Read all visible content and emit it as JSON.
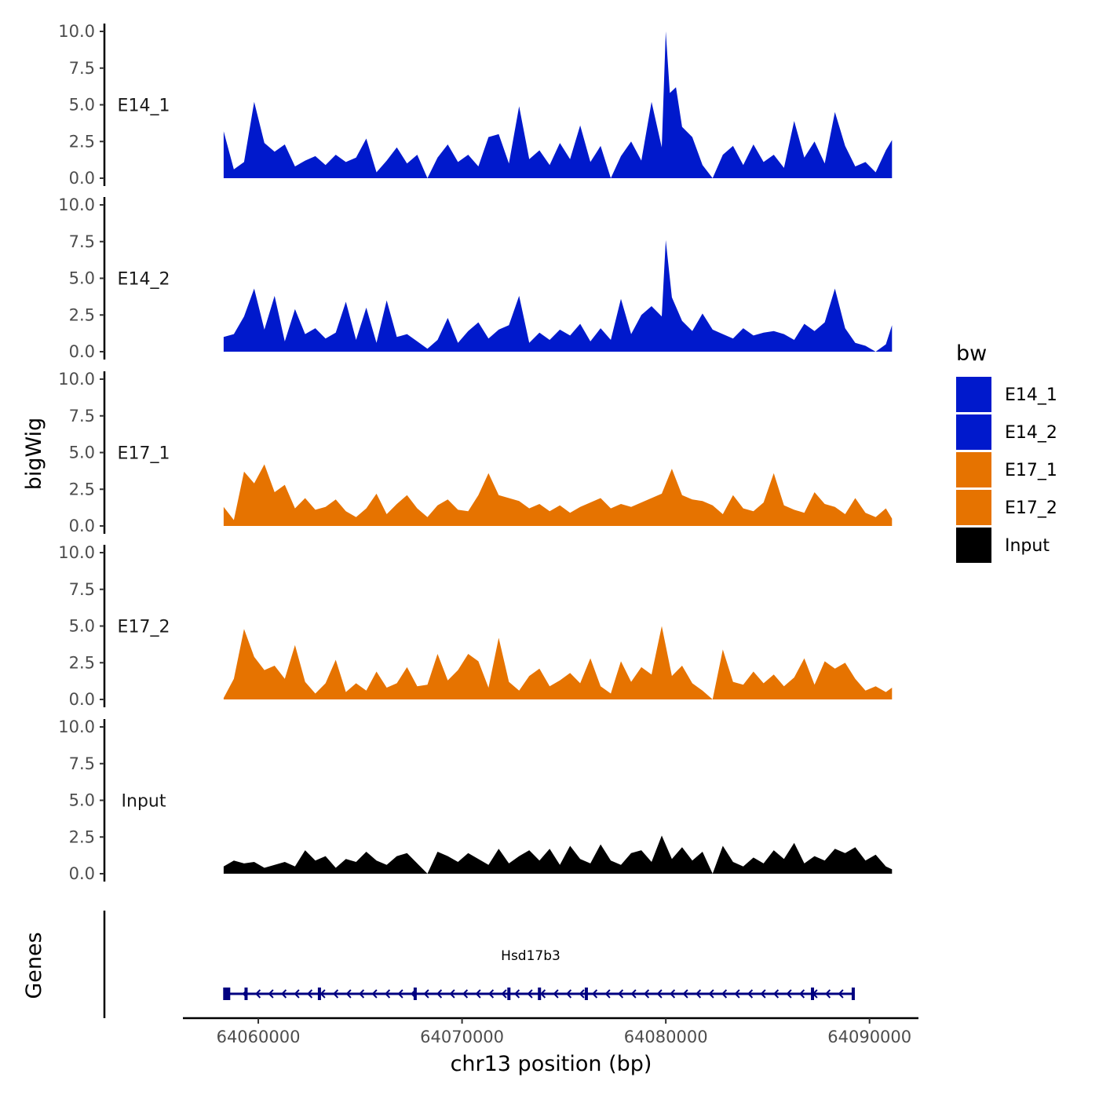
{
  "chart_data": {
    "type": "area",
    "xlabel": "chr13 position (bp)",
    "ylabel": "bigWig",
    "genes_label": "Genes",
    "xlim": [
      64056300,
      64092400
    ],
    "x_ticks": [
      64060000,
      64070000,
      64080000,
      64090000
    ],
    "x_tick_labels": [
      "64060000",
      "64070000",
      "64080000",
      "64090000"
    ],
    "ylim": [
      0,
      10
    ],
    "y_ticks": [
      0,
      2.5,
      5,
      7.5,
      10
    ],
    "y_tick_labels": [
      "0.0",
      "2.5",
      "5.0",
      "7.5",
      "10.0"
    ],
    "legend": {
      "title": "bw",
      "items": [
        {
          "label": "E14_1",
          "color": "#0019CC"
        },
        {
          "label": "E14_2",
          "color": "#0019CC"
        },
        {
          "label": "E17_1",
          "color": "#E67300"
        },
        {
          "label": "E17_2",
          "color": "#E67300"
        },
        {
          "label": "Input",
          "color": "#000000"
        }
      ]
    },
    "series": [
      {
        "name": "E14_1",
        "color": "#0019CC",
        "x": [
          64058300,
          64058800,
          64059300,
          64059800,
          64060300,
          64060800,
          64061300,
          64061800,
          64062300,
          64062800,
          64063300,
          64063800,
          64064300,
          64064800,
          64065300,
          64065800,
          64066300,
          64066800,
          64067300,
          64067800,
          64068300,
          64068800,
          64069300,
          64069800,
          64070300,
          64070800,
          64071300,
          64071800,
          64072300,
          64072800,
          64073300,
          64073800,
          64074300,
          64074800,
          64075300,
          64075800,
          64076300,
          64076800,
          64077300,
          64077800,
          64078300,
          64078800,
          64079300,
          64079800,
          64080000,
          64080200,
          64080500,
          64080800,
          64081300,
          64081800,
          64082300,
          64082800,
          64083300,
          64083800,
          64084300,
          64084800,
          64085300,
          64085800,
          64086300,
          64086800,
          64087300,
          64087800,
          64088300,
          64088800,
          64089300,
          64089800,
          64090300,
          64090800,
          64091100
        ],
        "values": [
          3.2,
          0.6,
          1.1,
          5.2,
          2.4,
          1.8,
          2.3,
          0.8,
          1.2,
          1.5,
          0.9,
          1.6,
          1.1,
          1.4,
          2.7,
          0.4,
          1.2,
          2.1,
          1.0,
          1.6,
          0.0,
          1.4,
          2.3,
          1.1,
          1.6,
          0.8,
          2.8,
          3.0,
          1.0,
          4.9,
          1.3,
          1.9,
          0.9,
          2.4,
          1.3,
          3.6,
          1.1,
          2.2,
          0.0,
          1.5,
          2.5,
          1.2,
          5.2,
          2.1,
          10.0,
          5.8,
          6.2,
          3.5,
          2.8,
          0.9,
          0.0,
          1.6,
          2.2,
          0.9,
          2.3,
          1.1,
          1.6,
          0.7,
          3.9,
          1.4,
          2.5,
          1.0,
          4.5,
          2.2,
          0.8,
          1.1,
          0.4,
          1.9,
          2.6
        ]
      },
      {
        "name": "E14_2",
        "color": "#0019CC",
        "x": [
          64058300,
          64058800,
          64059300,
          64059800,
          64060300,
          64060800,
          64061300,
          64061800,
          64062300,
          64062800,
          64063300,
          64063800,
          64064300,
          64064800,
          64065300,
          64065800,
          64066300,
          64066800,
          64067300,
          64067800,
          64068300,
          64068800,
          64069300,
          64069800,
          64070300,
          64070800,
          64071300,
          64071800,
          64072300,
          64072800,
          64073300,
          64073800,
          64074300,
          64074800,
          64075300,
          64075800,
          64076300,
          64076800,
          64077300,
          64077800,
          64078300,
          64078800,
          64079300,
          64079800,
          64080000,
          64080300,
          64080800,
          64081300,
          64081800,
          64082300,
          64082800,
          64083300,
          64083800,
          64084300,
          64084800,
          64085300,
          64085800,
          64086300,
          64086800,
          64087300,
          64087800,
          64088300,
          64088800,
          64089300,
          64089800,
          64090300,
          64090800,
          64091100
        ],
        "values": [
          1.0,
          1.2,
          2.4,
          4.3,
          1.5,
          3.8,
          0.7,
          2.9,
          1.2,
          1.6,
          0.9,
          1.3,
          3.4,
          0.8,
          3.0,
          0.6,
          3.5,
          1.0,
          1.2,
          0.7,
          0.2,
          0.8,
          2.3,
          0.6,
          1.4,
          2.0,
          0.9,
          1.5,
          1.8,
          3.8,
          0.6,
          1.3,
          0.8,
          1.5,
          1.1,
          1.9,
          0.7,
          1.6,
          0.8,
          3.6,
          1.2,
          2.5,
          3.1,
          2.4,
          7.6,
          3.7,
          2.1,
          1.4,
          2.6,
          1.5,
          1.2,
          0.9,
          1.6,
          1.1,
          1.3,
          1.4,
          1.2,
          0.8,
          1.9,
          1.4,
          2.0,
          4.3,
          1.6,
          0.6,
          0.4,
          0.0,
          0.5,
          1.8
        ]
      },
      {
        "name": "E17_1",
        "color": "#E67300",
        "x": [
          64058300,
          64058800,
          64059300,
          64059800,
          64060300,
          64060800,
          64061300,
          64061800,
          64062300,
          64062800,
          64063300,
          64063800,
          64064300,
          64064800,
          64065300,
          64065800,
          64066300,
          64066800,
          64067300,
          64067800,
          64068300,
          64068800,
          64069300,
          64069800,
          64070300,
          64070800,
          64071300,
          64071800,
          64072300,
          64072800,
          64073300,
          64073800,
          64074300,
          64074800,
          64075300,
          64075800,
          64076300,
          64076800,
          64077300,
          64077800,
          64078300,
          64078800,
          64079300,
          64079800,
          64080300,
          64080800,
          64081300,
          64081800,
          64082300,
          64082800,
          64083300,
          64083800,
          64084300,
          64084800,
          64085300,
          64085800,
          64086300,
          64086800,
          64087300,
          64087800,
          64088300,
          64088800,
          64089300,
          64089800,
          64090300,
          64090800,
          64091100
        ],
        "values": [
          1.3,
          0.4,
          3.7,
          2.9,
          4.2,
          2.3,
          2.8,
          1.2,
          1.9,
          1.1,
          1.3,
          1.8,
          1.0,
          0.6,
          1.2,
          2.2,
          0.8,
          1.5,
          2.1,
          1.2,
          0.6,
          1.4,
          1.8,
          1.1,
          1.0,
          2.1,
          3.6,
          2.1,
          1.9,
          1.7,
          1.2,
          1.5,
          1.0,
          1.4,
          0.9,
          1.3,
          1.6,
          1.9,
          1.2,
          1.5,
          1.3,
          1.6,
          1.9,
          2.2,
          3.9,
          2.1,
          1.8,
          1.7,
          1.4,
          0.8,
          2.1,
          1.2,
          1.0,
          1.6,
          3.6,
          1.4,
          1.1,
          0.9,
          2.3,
          1.5,
          1.3,
          0.8,
          1.9,
          0.9,
          0.6,
          1.2,
          0.5
        ]
      },
      {
        "name": "E17_2",
        "color": "#E67300",
        "x": [
          64058300,
          64058800,
          64059300,
          64059800,
          64060300,
          64060800,
          64061300,
          64061800,
          64062300,
          64062800,
          64063300,
          64063800,
          64064300,
          64064800,
          64065300,
          64065800,
          64066300,
          64066800,
          64067300,
          64067800,
          64068300,
          64068800,
          64069300,
          64069800,
          64070300,
          64070800,
          64071300,
          64071800,
          64072300,
          64072800,
          64073300,
          64073800,
          64074300,
          64074800,
          64075300,
          64075800,
          64076300,
          64076800,
          64077300,
          64077800,
          64078300,
          64078800,
          64079300,
          64079800,
          64080300,
          64080800,
          64081300,
          64081800,
          64082300,
          64082800,
          64083300,
          64083800,
          64084300,
          64084800,
          64085300,
          64085800,
          64086300,
          64086800,
          64087300,
          64087800,
          64088300,
          64088800,
          64089300,
          64089800,
          64090300,
          64090800,
          64091100
        ],
        "values": [
          0.1,
          1.4,
          4.8,
          2.9,
          2.0,
          2.3,
          1.4,
          3.7,
          1.2,
          0.4,
          1.1,
          2.7,
          0.5,
          1.1,
          0.6,
          1.9,
          0.8,
          1.1,
          2.2,
          0.9,
          1.0,
          3.1,
          1.3,
          2.0,
          3.1,
          2.6,
          0.8,
          4.2,
          1.2,
          0.6,
          1.6,
          2.1,
          0.9,
          1.3,
          1.8,
          1.1,
          2.8,
          0.9,
          0.4,
          2.6,
          1.2,
          2.2,
          1.7,
          5.0,
          1.6,
          2.3,
          1.1,
          0.6,
          0.0,
          3.4,
          1.2,
          1.0,
          1.9,
          1.1,
          1.7,
          0.9,
          1.5,
          2.8,
          1.0,
          2.6,
          2.1,
          2.5,
          1.4,
          0.6,
          0.9,
          0.5,
          0.8
        ]
      },
      {
        "name": "Input",
        "color": "#000000",
        "x": [
          64058300,
          64058800,
          64059300,
          64059800,
          64060300,
          64060800,
          64061300,
          64061800,
          64062300,
          64062800,
          64063300,
          64063800,
          64064300,
          64064800,
          64065300,
          64065800,
          64066300,
          64066800,
          64067300,
          64067800,
          64068300,
          64068800,
          64069300,
          64069800,
          64070300,
          64070800,
          64071300,
          64071800,
          64072300,
          64072800,
          64073300,
          64073800,
          64074300,
          64074800,
          64075300,
          64075800,
          64076300,
          64076800,
          64077300,
          64077800,
          64078300,
          64078800,
          64079300,
          64079800,
          64080300,
          64080800,
          64081300,
          64081800,
          64082300,
          64082800,
          64083300,
          64083800,
          64084300,
          64084800,
          64085300,
          64085800,
          64086300,
          64086800,
          64087300,
          64087800,
          64088300,
          64088800,
          64089300,
          64089800,
          64090300,
          64090800,
          64091100
        ],
        "values": [
          0.5,
          0.9,
          0.7,
          0.8,
          0.4,
          0.6,
          0.8,
          0.5,
          1.6,
          0.9,
          1.2,
          0.4,
          1.0,
          0.8,
          1.5,
          0.9,
          0.6,
          1.2,
          1.4,
          0.7,
          0.0,
          1.5,
          1.2,
          0.8,
          1.4,
          1.0,
          0.6,
          1.7,
          0.7,
          1.2,
          1.6,
          0.9,
          1.7,
          0.6,
          1.9,
          1.0,
          0.7,
          2.0,
          0.9,
          0.6,
          1.4,
          1.6,
          0.8,
          2.6,
          1.0,
          1.8,
          0.9,
          1.5,
          0.0,
          1.9,
          0.8,
          0.5,
          1.1,
          0.7,
          1.6,
          1.0,
          2.1,
          0.7,
          1.2,
          0.9,
          1.7,
          1.4,
          1.8,
          0.9,
          1.3,
          0.5,
          0.3
        ]
      }
    ],
    "gene": {
      "name": "Hsd17b3",
      "start": 64058300,
      "end": 64089200,
      "strand": "-",
      "color": "#000080",
      "exons": [
        64058450,
        64059400,
        64063000,
        64067700,
        64072300,
        64073800,
        64076100,
        64087200,
        64089200
      ]
    }
  }
}
